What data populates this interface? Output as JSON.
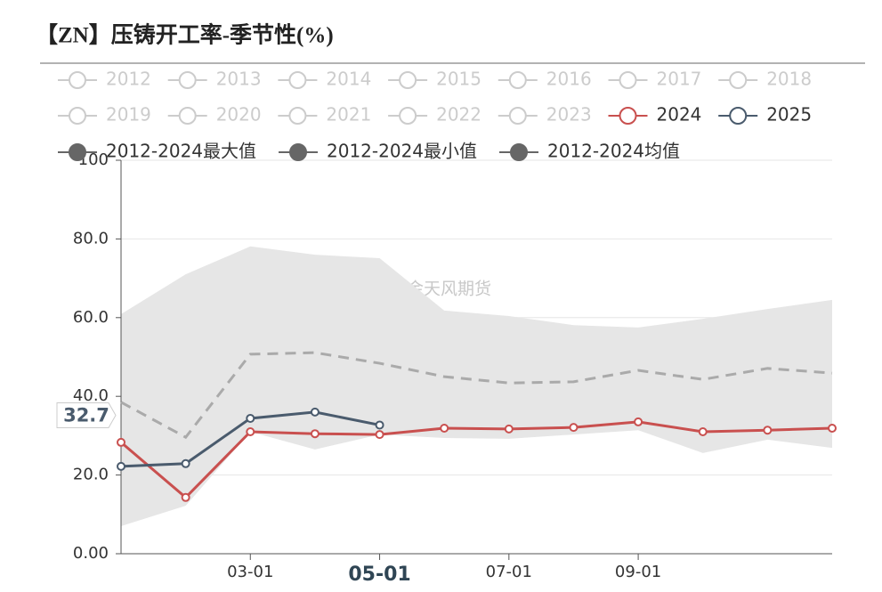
{
  "chart_data": {
    "type": "line",
    "title": "【ZN】压铸开工率-季节性(%)",
    "watermark": "紫金天风期货",
    "categories": [
      null,
      null,
      "03-01",
      null,
      "05-01",
      null,
      "07-01",
      null,
      "09-01",
      null,
      null,
      null
    ],
    "highlight_category": 4,
    "ylim": [
      0,
      100
    ],
    "yticks": [
      {
        "value": 0,
        "label": "0.00"
      },
      {
        "value": 20,
        "label": "20.0"
      },
      {
        "value": 40,
        "label": "40.0"
      },
      {
        "value": 60,
        "label": "60.0"
      },
      {
        "value": 80,
        "label": "80.0"
      },
      100
    ],
    "grid": true,
    "legend_inactive": [
      "2012",
      "2013",
      "2014",
      "2015",
      "2016",
      "2017",
      "2018",
      "2019",
      "2020",
      "2021",
      "2022",
      "2023"
    ],
    "legend_inactive_color": "#cccccc",
    "legend_band_color": "#666666",
    "area_color": "#e6e6e6",
    "series": [
      {
        "name": "2024",
        "color": "#c9504f",
        "style": "line",
        "values": [
          28.3,
          14.3,
          31.0,
          30.5,
          30.3,
          31.9,
          31.7,
          32.1,
          33.5,
          31.0,
          31.4,
          31.9
        ]
      },
      {
        "name": "2025",
        "color": "#4a5b6d",
        "style": "line",
        "end_label": true,
        "values": [
          22.2,
          22.9,
          34.4,
          36.0,
          32.7,
          null,
          null,
          null,
          null,
          null,
          null,
          null
        ]
      },
      {
        "name": "2012-2024最大值",
        "color": "#aaaaaa",
        "style": "area-top",
        "values": [
          60.9,
          71.0,
          78.1,
          76.0,
          75.1,
          61.8,
          60.4,
          58.1,
          57.5,
          59.7,
          62.2,
          64.5
        ]
      },
      {
        "name": "2012-2024最小值",
        "color": "#aaaaaa",
        "style": "area-bottom",
        "values": [
          7.0,
          12.2,
          31.0,
          26.5,
          30.3,
          29.4,
          29.2,
          30.3,
          31.4,
          25.6,
          29.0,
          26.9
        ]
      },
      {
        "name": "2012-2024均值",
        "color": "#aaaaaa",
        "style": "dashed",
        "values": [
          38.5,
          29.6,
          50.7,
          51.1,
          48.4,
          45.0,
          43.4,
          43.7,
          46.6,
          44.3,
          47.1,
          45.9
        ]
      }
    ]
  }
}
